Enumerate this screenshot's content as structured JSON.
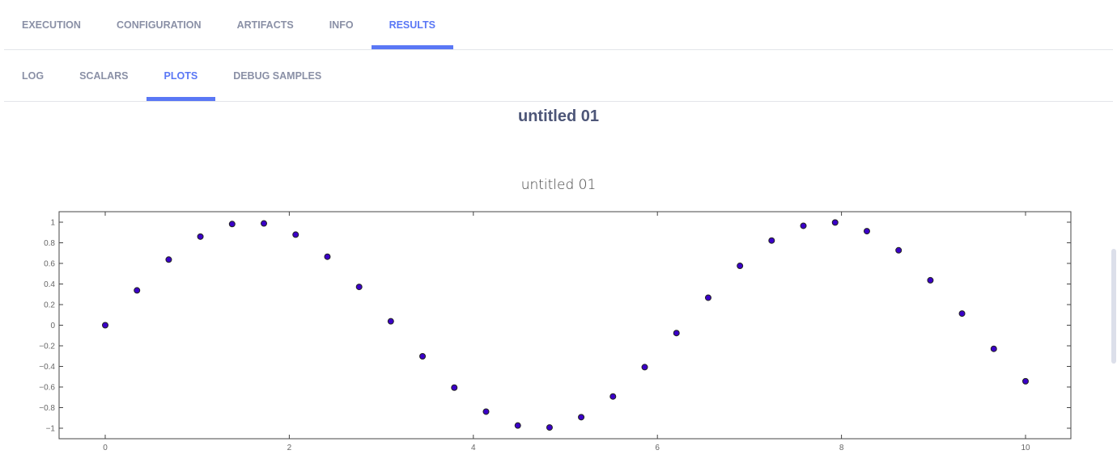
{
  "tabs": [
    "EXECUTION",
    "CONFIGURATION",
    "ARTIFACTS",
    "INFO",
    "RESULTS"
  ],
  "subtabs": [
    "LOG",
    "SCALARS",
    "PLOTS",
    "DEBUG SAMPLES"
  ],
  "active_tab": "RESULTS",
  "active_subtab": "PLOTS",
  "section_title": "untitled 01",
  "chart_data": {
    "type": "scatter",
    "title": "untitled 01",
    "xlabel": "",
    "ylabel": "",
    "xlim": [
      -0.5,
      10.5
    ],
    "ylim": [
      -1.1,
      1.1
    ],
    "xticks": [
      0,
      2,
      4,
      6,
      8,
      10
    ],
    "yticks": [
      -1,
      -0.8,
      -0.6,
      -0.4,
      -0.2,
      0,
      0.2,
      0.4,
      0.6,
      0.8,
      1
    ],
    "ytick_labels": [
      "−1",
      "−0.8",
      "−0.6",
      "−0.4",
      "−0.2",
      "0",
      "0.2",
      "0.4",
      "0.6",
      "0.8",
      "1"
    ],
    "marker_color": "#3a00c8",
    "grid": false,
    "x": [
      0,
      0.345,
      0.69,
      1.034,
      1.379,
      1.724,
      2.069,
      2.414,
      2.759,
      3.103,
      3.448,
      3.793,
      4.138,
      4.483,
      4.828,
      5.172,
      5.517,
      5.862,
      6.207,
      6.552,
      6.897,
      7.241,
      7.586,
      7.931,
      8.276,
      8.621,
      8.966,
      9.31,
      9.655,
      10
    ],
    "y": [
      0,
      0.338,
      0.637,
      0.86,
      0.982,
      0.988,
      0.879,
      0.665,
      0.372,
      0.038,
      -0.302,
      -0.606,
      -0.839,
      -0.974,
      -0.993,
      -0.893,
      -0.692,
      -0.407,
      -0.076,
      0.267,
      0.576,
      0.822,
      0.965,
      0.997,
      0.913,
      0.727,
      0.436,
      0.113,
      -0.229,
      -0.544
    ]
  }
}
